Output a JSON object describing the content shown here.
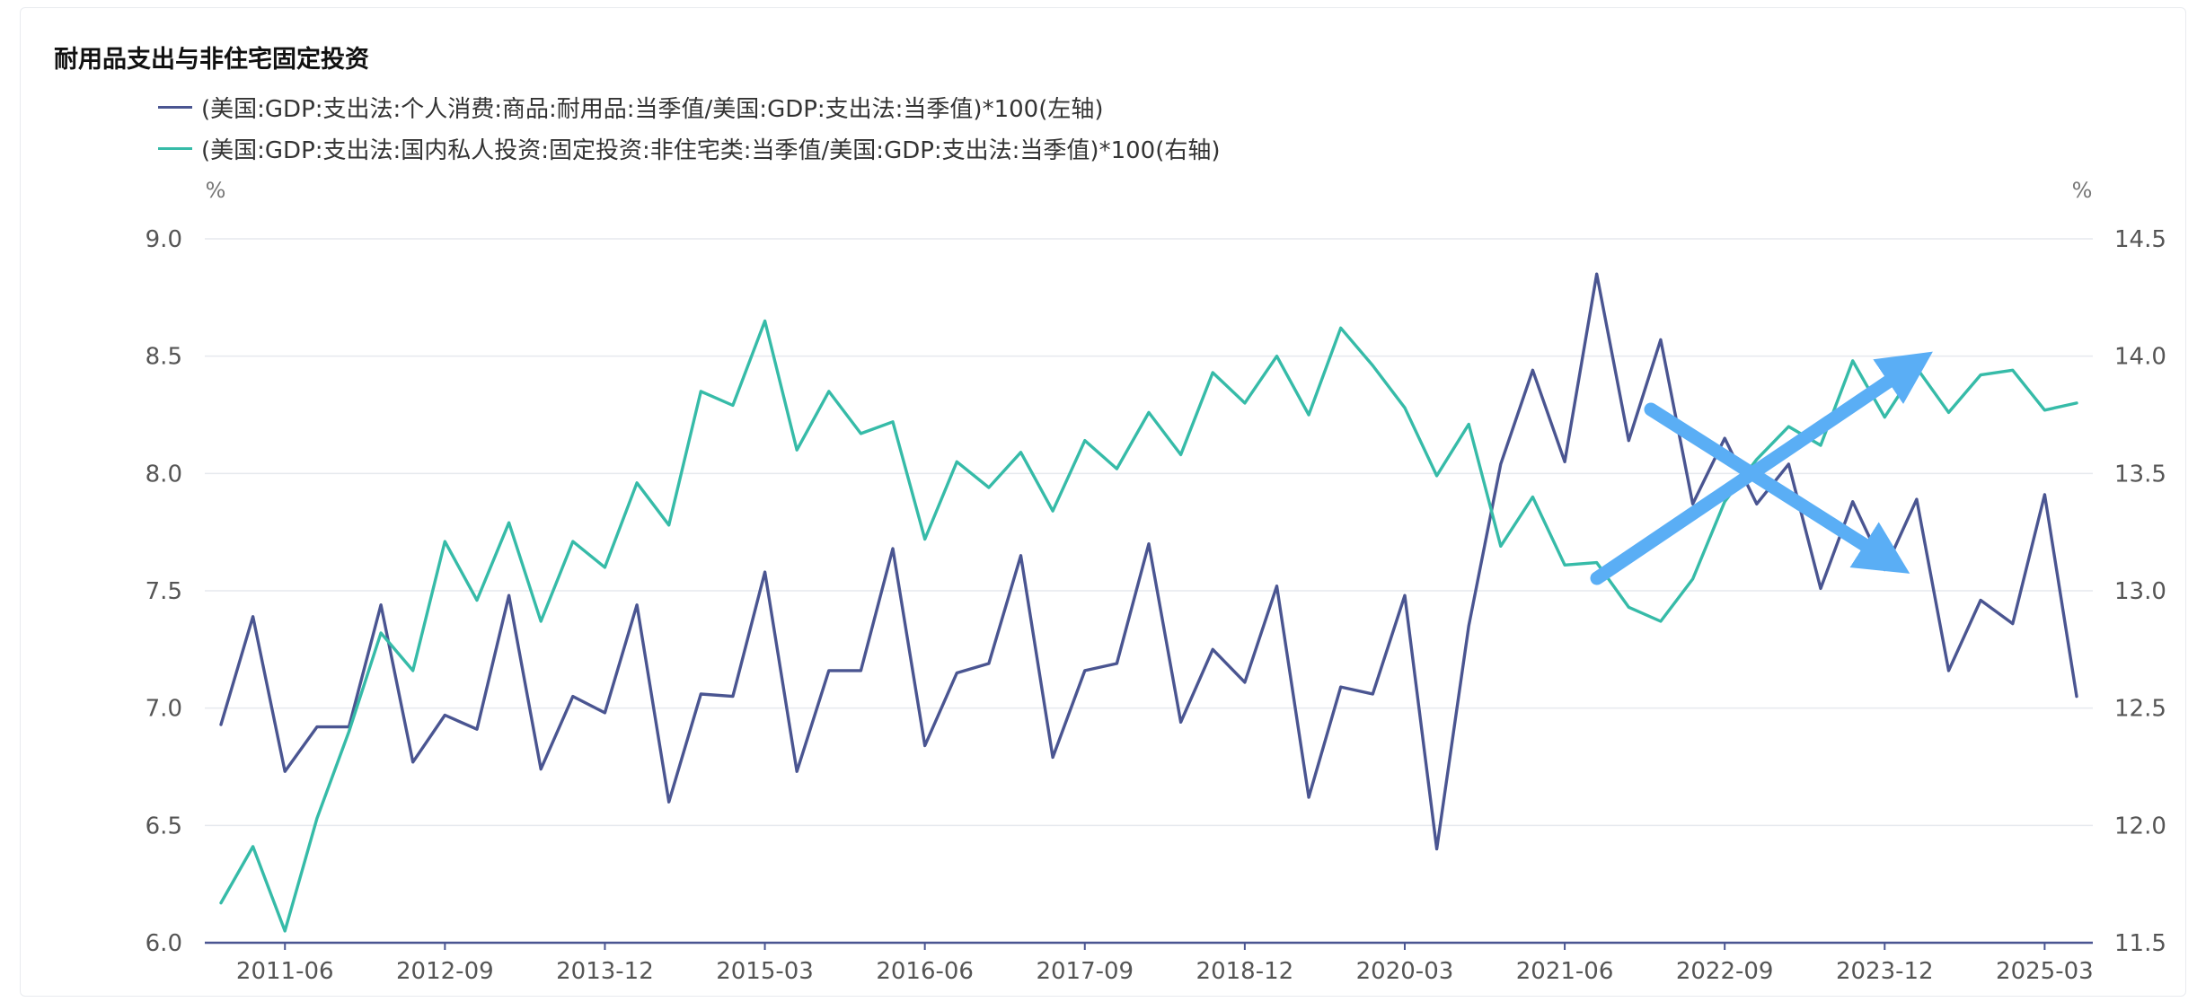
{
  "chart_data": {
    "type": "line",
    "title": "耐用品支出与非住宅固定投资",
    "left_unit": "%",
    "right_unit": "%",
    "y_left": {
      "ylim": [
        6.0,
        9.0
      ],
      "ticks": [
        "9.0",
        "8.5",
        "8.0",
        "7.5",
        "7.0",
        "6.5",
        "6.0"
      ]
    },
    "y_right": {
      "ylim": [
        11.5,
        14.5
      ],
      "ticks": [
        "14.5",
        "14.0",
        "13.5",
        "13.0",
        "12.5",
        "12.0",
        "11.5"
      ]
    },
    "x_tick_labels": [
      "2011-06",
      "2012-09",
      "2013-12",
      "2015-03",
      "2016-06",
      "2017-09",
      "2018-12",
      "2020-03",
      "2021-06",
      "2022-09",
      "2023-12",
      "2025-03"
    ],
    "x_start": "2010-12",
    "x_end": "2025-03",
    "grid": true,
    "legend_position": "top-left",
    "series": [
      {
        "name": "(美国:GDP:支出法:个人消费:商品:耐用品:当季值/美国:GDP:支出法:当季值)*100(左轴)",
        "axis": "left",
        "color": "#4a5591",
        "values": [
          6.93,
          7.39,
          6.73,
          6.92,
          6.92,
          7.44,
          6.77,
          6.97,
          6.91,
          7.48,
          6.74,
          7.05,
          6.98,
          7.44,
          6.6,
          7.06,
          7.05,
          7.58,
          6.73,
          7.16,
          7.16,
          7.68,
          6.84,
          7.15,
          7.19,
          7.65,
          6.79,
          7.16,
          7.19,
          7.7,
          6.94,
          7.25,
          7.11,
          7.52,
          6.62,
          7.09,
          7.06,
          7.48,
          6.4,
          7.35,
          8.04,
          8.44,
          8.05,
          8.85,
          8.14,
          8.57,
          7.87,
          8.15,
          7.87,
          8.04,
          7.51,
          7.88,
          7.59,
          7.89,
          7.16,
          7.46,
          7.36,
          7.91,
          7.05
        ]
      },
      {
        "name": "(美国:GDP:支出法:国内私人投资:固定投资:非住宅类:当季值/美国:GDP:支出法:当季值)*100(右轴)",
        "axis": "right",
        "color": "#36bba8",
        "values": [
          11.67,
          11.91,
          11.55,
          12.03,
          12.4,
          12.82,
          12.66,
          13.21,
          12.96,
          13.29,
          12.87,
          13.21,
          13.1,
          13.46,
          13.28,
          13.85,
          13.79,
          14.15,
          13.6,
          13.85,
          13.67,
          13.72,
          13.22,
          13.55,
          13.44,
          13.59,
          13.34,
          13.64,
          13.52,
          13.76,
          13.58,
          13.93,
          13.8,
          14.0,
          13.75,
          14.12,
          13.96,
          13.78,
          13.49,
          13.71,
          13.19,
          13.4,
          13.11,
          13.12,
          12.93,
          12.87,
          13.05,
          13.38,
          13.56,
          13.7,
          13.62,
          13.98,
          13.74,
          13.95,
          13.76,
          13.92,
          13.94,
          13.77,
          13.8
        ]
      }
    ]
  },
  "annotations": [
    {
      "type": "arrow",
      "meaning": "rising trend arrow",
      "color": "#5aaef5"
    },
    {
      "type": "arrow",
      "meaning": "falling trend arrow",
      "color": "#5aaef5"
    }
  ]
}
